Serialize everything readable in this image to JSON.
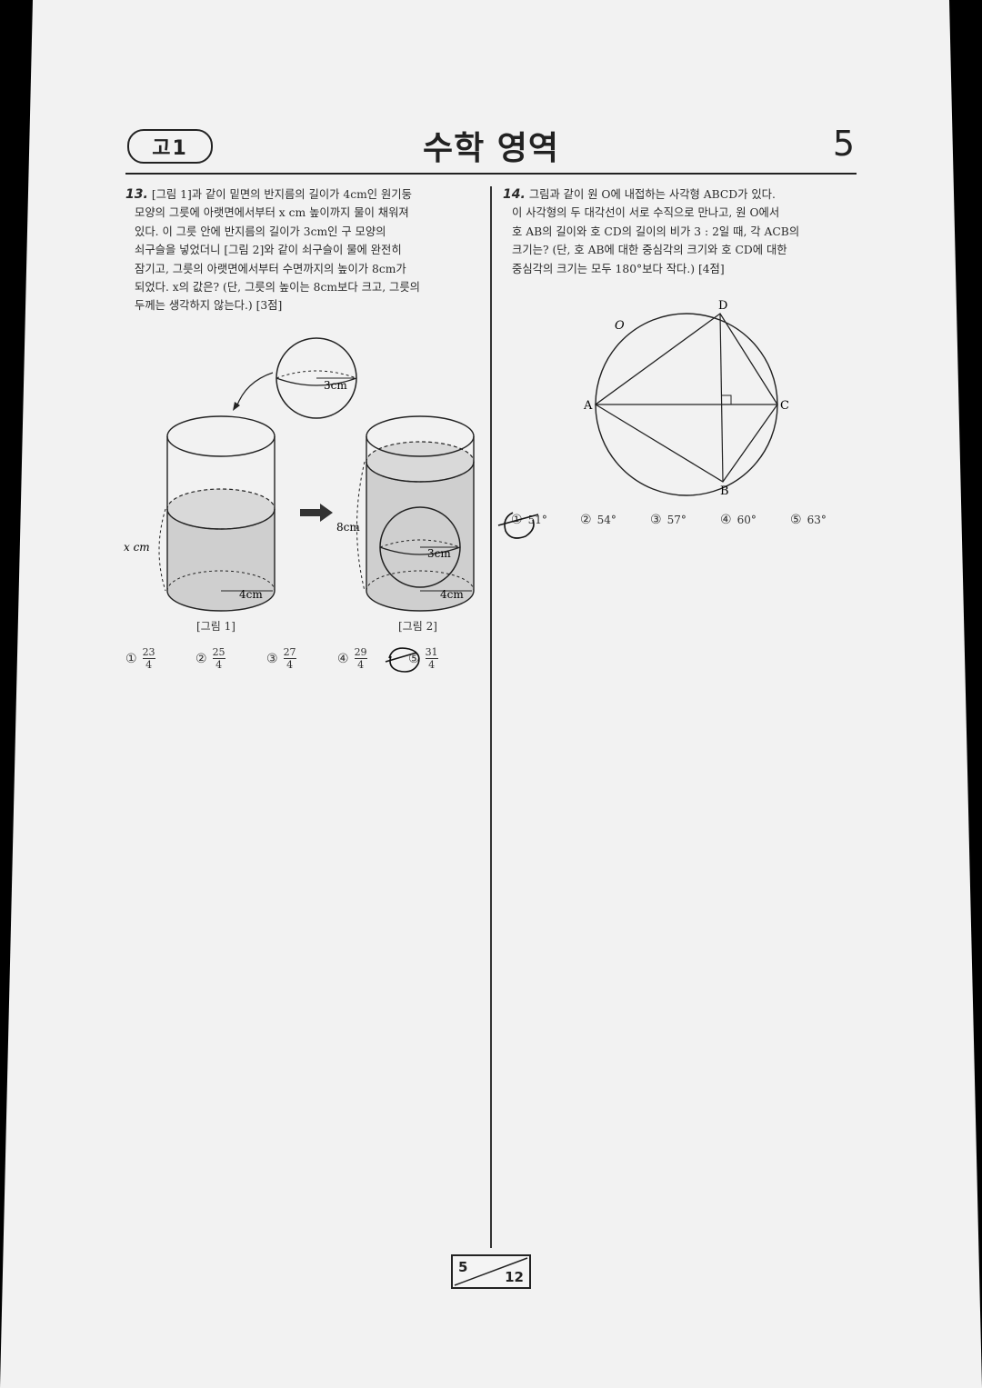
{
  "header": {
    "grade": "고1",
    "title": "수학 영역",
    "page_number": "5"
  },
  "q13": {
    "number": "13.",
    "lines": [
      "[그림 1]과 같이 밑면의 반지름의 길이가 4cm인 원기둥",
      "모양의 그릇에 아랫면에서부터 x cm 높이까지 물이 채워져",
      "있다. 이 그릇 안에 반지름의 길이가 3cm인 구 모양의",
      "쇠구슬을 넣었더니 [그림 2]와 같이 쇠구슬이 물에 완전히",
      "잠기고, 그릇의 아랫면에서부터 수면까지의 높이가 8cm가",
      "되었다. x의 값은? (단, 그릇의 높이는 8cm보다 크고, 그릇의",
      "두께는 생각하지 않는다.) [3점]"
    ],
    "figure": {
      "ball_radius": "3cm",
      "cyl_radius": "4cm",
      "water_height_1": "x cm",
      "water_height_2": "8cm",
      "caption_1": "[그림 1]",
      "caption_2": "[그림 2]"
    },
    "choices": [
      {
        "mark": "①",
        "num": "23",
        "den": "4"
      },
      {
        "mark": "②",
        "num": "25",
        "den": "4"
      },
      {
        "mark": "③",
        "num": "27",
        "den": "4"
      },
      {
        "mark": "④",
        "num": "29",
        "den": "4"
      },
      {
        "mark": "⑤",
        "num": "31",
        "den": "4"
      }
    ],
    "marked_choice": 5
  },
  "q14": {
    "number": "14.",
    "lines": [
      "그림과 같이 원 O에 내접하는 사각형 ABCD가 있다.",
      "이 사각형의 두 대각선이 서로 수직으로 만나고, 원 O에서",
      "호 AB의 길이와 호 CD의 길이의 비가 3 : 2일 때, 각 ACB의",
      "크기는? (단, 호 AB에 대한 중심각의 크기와 호 CD에 대한",
      "중심각의 크기는 모두 180°보다 작다.) [4점]"
    ],
    "figure": {
      "circle_label": "O",
      "points": {
        "A": "A",
        "B": "B",
        "C": "C",
        "D": "D"
      }
    },
    "choices": [
      {
        "mark": "①",
        "value": "51°"
      },
      {
        "mark": "②",
        "value": "54°"
      },
      {
        "mark": "③",
        "value": "57°"
      },
      {
        "mark": "④",
        "value": "60°"
      },
      {
        "mark": "⑤",
        "value": "63°"
      }
    ],
    "marked_choice": 1
  },
  "footer": {
    "current_page": "5",
    "total_pages": "12"
  }
}
